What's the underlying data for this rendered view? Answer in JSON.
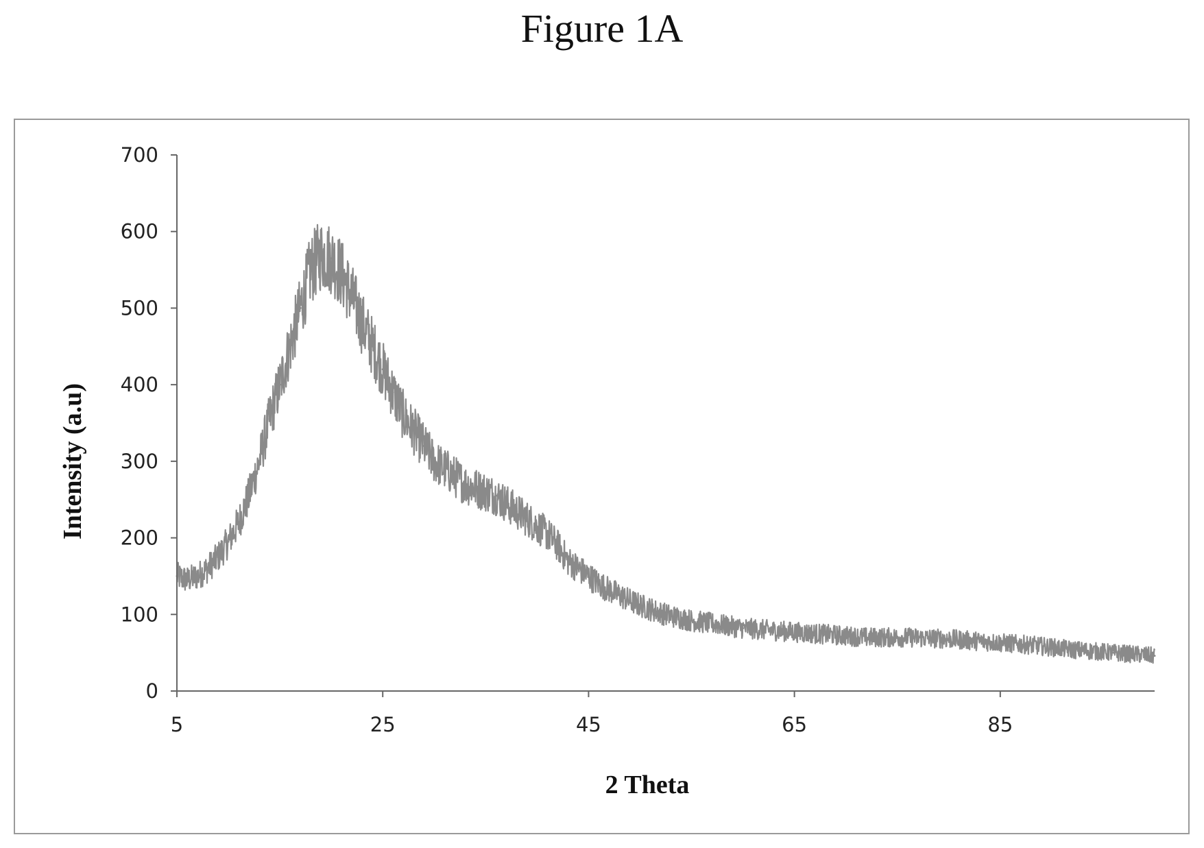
{
  "figure_title": "Figure 1A",
  "chart_data": {
    "type": "line",
    "title": "",
    "xlabel": "2 Theta",
    "ylabel": "Intensity (a.u)",
    "xlim": [
      5,
      100
    ],
    "ylim": [
      0,
      700
    ],
    "xticks": [
      5,
      25,
      45,
      65,
      85
    ],
    "yticks": [
      0,
      100,
      200,
      300,
      400,
      500,
      600,
      700
    ],
    "grid": false,
    "legend": "none",
    "line_color": "#8a8a8a",
    "series": [
      {
        "name": "",
        "x": [
          5,
          6,
          7,
          8,
          9,
          10,
          11,
          12,
          13,
          14,
          15,
          16,
          17,
          18,
          19,
          20,
          21,
          22,
          23,
          24,
          25,
          26,
          27,
          28,
          29,
          30,
          31,
          32,
          33,
          34,
          35,
          36,
          37,
          38,
          39,
          40,
          41,
          42,
          43,
          44,
          45,
          46,
          47,
          48,
          49,
          50,
          51,
          52,
          53,
          54,
          55,
          56,
          57,
          58,
          59,
          60,
          62,
          64,
          66,
          68,
          70,
          72,
          74,
          76,
          78,
          80,
          82,
          84,
          86,
          88,
          90,
          92,
          94,
          96,
          98,
          100
        ],
        "y": [
          150,
          145,
          150,
          160,
          175,
          195,
          220,
          255,
          300,
          355,
          400,
          450,
          500,
          550,
          570,
          565,
          545,
          515,
          480,
          450,
          420,
          390,
          360,
          340,
          320,
          300,
          290,
          280,
          270,
          265,
          260,
          255,
          245,
          235,
          225,
          215,
          205,
          190,
          170,
          160,
          150,
          140,
          132,
          125,
          118,
          112,
          107,
          102,
          98,
          95,
          92,
          90,
          88,
          86,
          84,
          82,
          80,
          78,
          76,
          74,
          72,
          70,
          70,
          70,
          69,
          68,
          66,
          64,
          62,
          60,
          57,
          54,
          52,
          50,
          48,
          46
        ]
      }
    ]
  }
}
